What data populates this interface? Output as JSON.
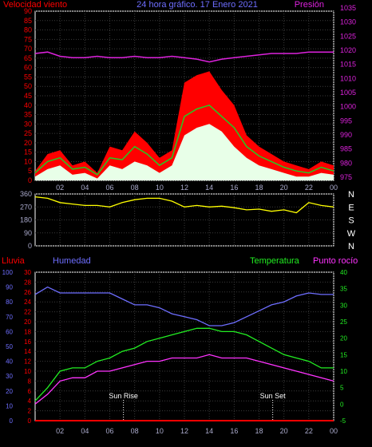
{
  "colors": {
    "background": "#000000",
    "frame": "#ffffff",
    "grid": "#3a3a3a",
    "wind_gust": "#ff0000",
    "wind_avg": "#22cc22",
    "wind_speed": "#e8ffe8",
    "pressure": "#dd22dd",
    "direction": "#ffff00",
    "rain": "#ff0000",
    "humidity": "#6e6eff",
    "temperature": "#22ee22",
    "dewpoint": "#ff33ff",
    "ticks": "#aaaacc",
    "marker": "#ffffff"
  },
  "top_chart": {
    "title": "24 hora gráfico. 17 Enero 2021",
    "left_label": "Velocidad viento",
    "right_label": "Presión",
    "left_ticks": [
      "0",
      "5",
      "10",
      "15",
      "20",
      "25",
      "30",
      "35",
      "40",
      "45",
      "50",
      "55",
      "60",
      "65",
      "70",
      "75",
      "80",
      "85",
      "90"
    ],
    "right_ticks": [
      "975",
      "980",
      "985",
      "990",
      "995",
      "1000",
      "1005",
      "1010",
      "1015",
      "1020",
      "1025",
      "1030",
      "1035"
    ]
  },
  "direction_chart": {
    "left_ticks": [
      "0",
      "90",
      "180",
      "270",
      "360"
    ],
    "compass": [
      "N",
      "W",
      "S",
      "E",
      "N"
    ]
  },
  "x_ticks": [
    "02",
    "04",
    "06",
    "08",
    "10",
    "12",
    "14",
    "16",
    "18",
    "20",
    "22",
    "00"
  ],
  "bottom_chart": {
    "rain_label": "Lluvia",
    "humidity_label": "Humedad",
    "temperature_label": "Temperatura",
    "dewpoint_label": "Punto rocío",
    "humidity_ticks": [
      "0",
      "10",
      "20",
      "30",
      "40",
      "50",
      "60",
      "70",
      "80",
      "90",
      "100"
    ],
    "rain_ticks": [
      "0",
      "2",
      "4",
      "6",
      "8",
      "10",
      "12",
      "14",
      "16",
      "18",
      "20",
      "22",
      "24",
      "26",
      "28",
      "30"
    ],
    "temp_ticks": [
      "-5",
      "0",
      "5",
      "10",
      "15",
      "20",
      "25",
      "30",
      "35",
      "40"
    ],
    "sunrise_label": "Sun Rise",
    "sunset_label": "Sun Set"
  },
  "chart_data": [
    {
      "type": "line",
      "name": "wind-and-pressure",
      "x_hours": [
        0,
        1,
        2,
        3,
        4,
        5,
        6,
        7,
        8,
        9,
        10,
        11,
        12,
        13,
        14,
        15,
        16,
        17,
        18,
        19,
        20,
        21,
        22,
        23,
        24
      ],
      "series": [
        {
          "key": "gust",
          "axis": "wind",
          "values": [
            5,
            14,
            16,
            8,
            10,
            4,
            18,
            16,
            26,
            20,
            12,
            16,
            52,
            56,
            58,
            48,
            40,
            24,
            18,
            14,
            10,
            8,
            6,
            10,
            8
          ]
        },
        {
          "key": "avg",
          "axis": "wind",
          "values": [
            4,
            10,
            12,
            6,
            7,
            3,
            12,
            11,
            18,
            14,
            8,
            12,
            34,
            38,
            40,
            34,
            28,
            18,
            13,
            10,
            7,
            5,
            4,
            7,
            5
          ]
        },
        {
          "key": "speed",
          "axis": "wind",
          "values": [
            2,
            6,
            8,
            3,
            4,
            1,
            8,
            6,
            10,
            8,
            4,
            8,
            24,
            28,
            30,
            26,
            18,
            12,
            8,
            6,
            4,
            2,
            2,
            4,
            3
          ]
        },
        {
          "key": "pressure",
          "axis": "pressure",
          "values": [
            1020,
            1020.5,
            1019,
            1018.5,
            1018.5,
            1019,
            1018.5,
            1018.5,
            1019,
            1018.5,
            1018.5,
            1019,
            1018.5,
            1018,
            1017,
            1018,
            1018.5,
            1019,
            1019.5,
            1020,
            1020,
            1020,
            1020.5,
            1020.5,
            1020.5
          ]
        }
      ],
      "wind_ylim": [
        0,
        90
      ],
      "pressure_ylim": [
        975,
        1035
      ]
    },
    {
      "type": "line",
      "name": "wind-direction",
      "x_hours": [
        0,
        1,
        2,
        3,
        4,
        5,
        6,
        7,
        8,
        9,
        10,
        11,
        12,
        13,
        14,
        15,
        16,
        17,
        18,
        19,
        20,
        21,
        22,
        23,
        24
      ],
      "series": [
        {
          "key": "direction",
          "values": [
            340,
            330,
            300,
            290,
            280,
            280,
            270,
            300,
            320,
            330,
            330,
            310,
            270,
            280,
            270,
            275,
            265,
            250,
            255,
            240,
            250,
            230,
            300,
            280,
            270
          ]
        }
      ],
      "ylim": [
        0,
        360
      ]
    },
    {
      "type": "line",
      "name": "temperature-humidity",
      "x_hours": [
        0,
        1,
        2,
        3,
        4,
        5,
        6,
        7,
        8,
        9,
        10,
        11,
        12,
        13,
        14,
        15,
        16,
        17,
        18,
        19,
        20,
        21,
        22,
        23,
        24
      ],
      "series": [
        {
          "key": "humidity",
          "axis": "humidity",
          "values": [
            85,
            90,
            86,
            86,
            86,
            86,
            86,
            82,
            78,
            78,
            76,
            72,
            70,
            68,
            64,
            64,
            66,
            70,
            74,
            78,
            80,
            84,
            86,
            85,
            85
          ]
        },
        {
          "key": "temperature",
          "axis": "temp",
          "values": [
            1,
            5,
            10,
            11,
            11,
            13,
            14,
            16,
            17,
            19,
            20,
            21,
            22,
            23,
            23,
            22,
            22,
            21,
            19,
            17,
            15,
            14,
            13,
            11,
            11
          ]
        },
        {
          "key": "dewpoint",
          "axis": "temp",
          "values": [
            0,
            3,
            7,
            8,
            8,
            10,
            10,
            11,
            12,
            13,
            13,
            14,
            14,
            14,
            15,
            14,
            14,
            14,
            13,
            12,
            11,
            10,
            9,
            8,
            7
          ]
        },
        {
          "key": "rain",
          "axis": "rain",
          "values": [
            0,
            0,
            0,
            0,
            0,
            0,
            0,
            0,
            0,
            0,
            0,
            0,
            0,
            0,
            0,
            0,
            0,
            0,
            0,
            0,
            0,
            0,
            0,
            0,
            0
          ]
        }
      ],
      "humidity_ylim": [
        0,
        100
      ],
      "rain_ylim": [
        0,
        30
      ],
      "temp_ylim": [
        -5,
        40
      ]
    }
  ]
}
